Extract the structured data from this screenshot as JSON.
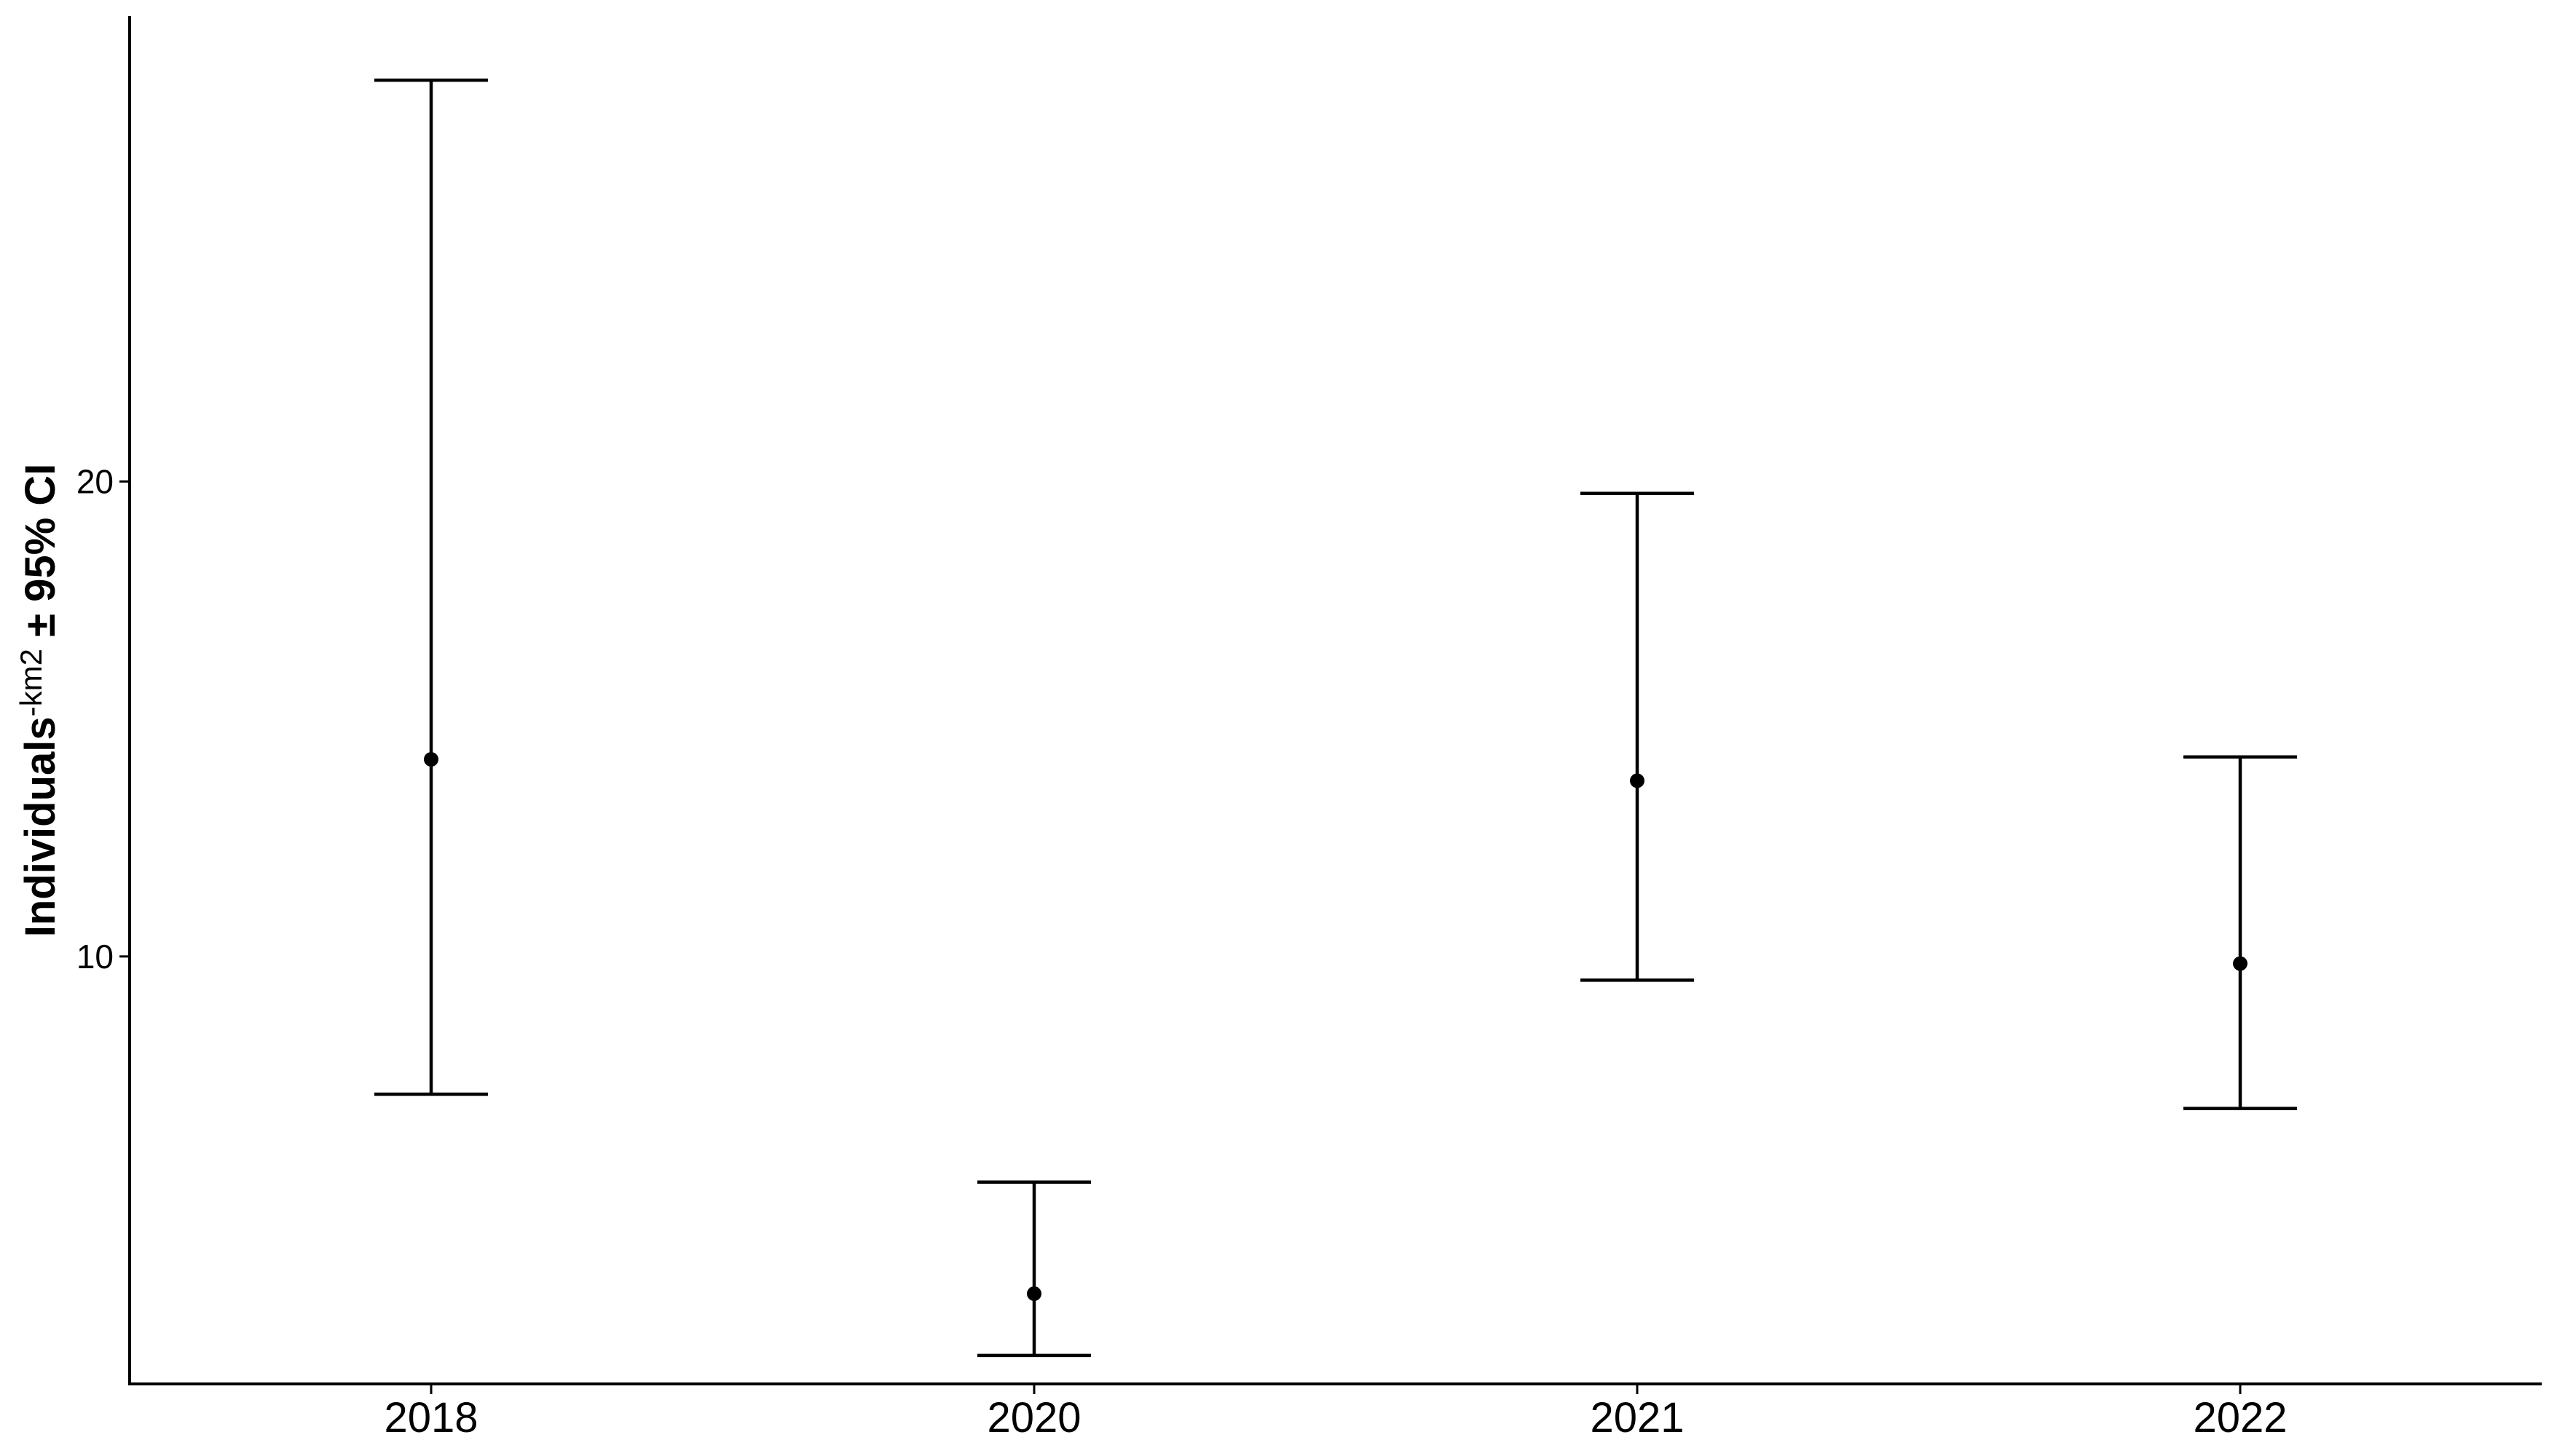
{
  "chart_data": {
    "type": "errorbar",
    "title": "",
    "xlabel": "",
    "ylabel_parts": {
      "prefix": "Individuals",
      "superscript": "-km2",
      "suffix": " ± 95% CI"
    },
    "categories": [
      "2018",
      "2020",
      "2021",
      "2022"
    ],
    "estimates": [
      14.15,
      2.9,
      13.7,
      9.85
    ],
    "lower": [
      7.1,
      1.6,
      9.5,
      6.8
    ],
    "upper": [
      28.45,
      5.25,
      19.75,
      14.2
    ],
    "ylim": [
      1.0,
      29.8
    ],
    "yticks": [
      10,
      20
    ],
    "grid": false,
    "legend": "none",
    "color": "#000000"
  }
}
